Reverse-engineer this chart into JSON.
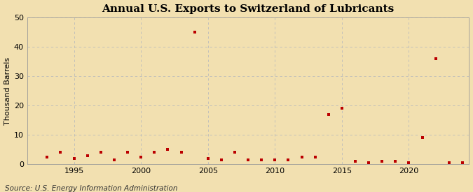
{
  "title": "Annual U.S. Exports to Switzerland of Lubricants",
  "ylabel": "Thousand Barrels",
  "source": "Source: U.S. Energy Information Administration",
  "background_color": "#f2e0b0",
  "years": [
    1993,
    1994,
    1995,
    1996,
    1997,
    1998,
    1999,
    2000,
    2001,
    2002,
    2003,
    2004,
    2005,
    2006,
    2007,
    2008,
    2009,
    2010,
    2011,
    2012,
    2013,
    2014,
    2015,
    2016,
    2017,
    2018,
    2019,
    2020,
    2021,
    2022,
    2023,
    2024
  ],
  "values": [
    2.5,
    4.0,
    2.0,
    3.0,
    4.0,
    1.5,
    4.0,
    2.5,
    4.0,
    5.0,
    4.0,
    45.0,
    2.0,
    1.5,
    4.0,
    1.5,
    1.5,
    1.5,
    1.5,
    2.5,
    2.5,
    17.0,
    19.0,
    1.0,
    0.5,
    1.0,
    1.0,
    0.5,
    9.0,
    36.0,
    0.5,
    0.5
  ],
  "dot_color": "#bb0000",
  "dot_size": 12,
  "ylim": [
    0,
    50
  ],
  "yticks": [
    0,
    10,
    20,
    30,
    40,
    50
  ],
  "xlim": [
    1991.5,
    2024.5
  ],
  "xticks": [
    1995,
    2000,
    2005,
    2010,
    2015,
    2020
  ],
  "grid_color": "#bbbbbb",
  "title_fontsize": 11,
  "ylabel_fontsize": 8,
  "tick_fontsize": 8,
  "source_fontsize": 7.5
}
